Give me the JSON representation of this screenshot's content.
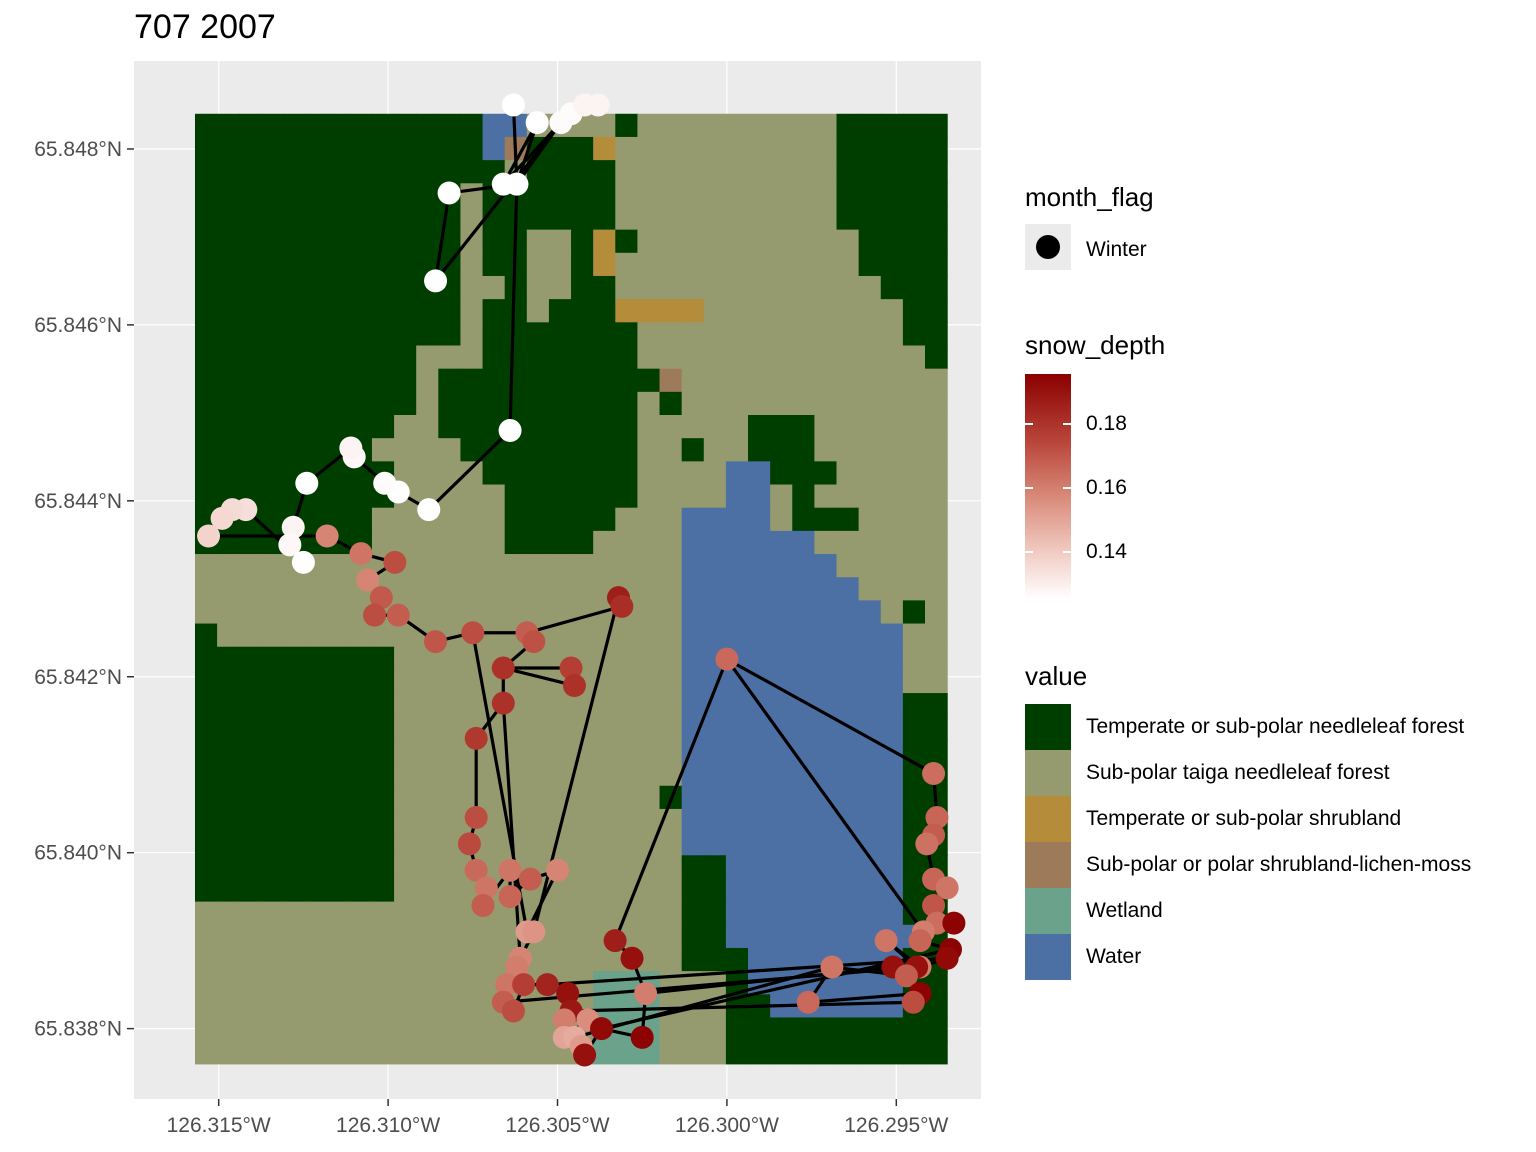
{
  "title": "707 2007",
  "colors": {
    "panel_bg": "#ebebeb",
    "gridline": "#ffffff",
    "path_line": "#000000",
    "snow_low": "#ffffff",
    "snow_high": "#8b0000"
  },
  "axes": {
    "x_ticks": [
      {
        "lon": -126.315,
        "label": "126.315°W"
      },
      {
        "lon": -126.31,
        "label": "126.310°W"
      },
      {
        "lon": -126.305,
        "label": "126.305°W"
      },
      {
        "lon": -126.3,
        "label": "126.300°W"
      },
      {
        "lon": -126.295,
        "label": "126.295°W"
      }
    ],
    "y_ticks": [
      {
        "lat": 65.848,
        "label": "65.848°N"
      },
      {
        "lat": 65.846,
        "label": "65.846°N"
      },
      {
        "lat": 65.844,
        "label": "65.844°N"
      },
      {
        "lat": 65.842,
        "label": "65.842°N"
      },
      {
        "lat": 65.84,
        "label": "65.840°N"
      },
      {
        "lat": 65.838,
        "label": "65.838°N"
      }
    ]
  },
  "legend_month": {
    "title": "month_flag",
    "items": [
      {
        "label": "Winter"
      }
    ]
  },
  "legend_snow": {
    "title": "snow_depth",
    "range": [
      0.125,
      0.195
    ],
    "ticks": [
      {
        "value": 0.18,
        "label": "0.18"
      },
      {
        "value": 0.16,
        "label": "0.16"
      },
      {
        "value": 0.14,
        "label": "0.14"
      }
    ]
  },
  "legend_value": {
    "title": "value",
    "items": [
      {
        "code": "T",
        "label": "Temperate or sub-polar needleleaf forest",
        "color": "#003e00"
      },
      {
        "code": "S",
        "label": "Sub-polar taiga needleleaf forest",
        "color": "#969b6f"
      },
      {
        "code": "B",
        "label": "Temperate or sub-polar shrubland",
        "color": "#b58c39"
      },
      {
        "code": "L",
        "label": "Sub-polar or polar shrubland-lichen-moss",
        "color": "#9c7a5a"
      },
      {
        "code": "E",
        "label": "Wetland",
        "color": "#6ba28c"
      },
      {
        "code": "W",
        "label": "Water",
        "color": "#4c70a3"
      }
    ]
  },
  "land_cover_grid": [
    "TTTTTTTTTTTTTWWSSSSTSSSSSSSSSTTTTT",
    "TTTTTTTTTTTTTWLTTTBSSSSSSSSSSTTTTT",
    "TTTTTTTTTTTTTTSTTTTSSSSSSSSSSTTTTT",
    "TTTTTTTTTTTTSTTTTTTSSSSSSSSSSTTTTT",
    "TTTTTTTTTTTTSTTTTTTSSSSSSSSSSTTTTT",
    "TTTTTTTTTTTTSTTSSTBTSSSSSSSSSSTTTT",
    "TTTTTTTTTTTTSTTSSTBSSSSSSSSSSSTTTT",
    "TTTTTTTTTTTTSSTSSTTSSSSSSSSSSSSTTT",
    "TTTTTTTTTTTTSTTSTTTBBBBSSSSSSSSSTT",
    "TTTTTTTTTTTTSTTTTTTTSSSSSSSSSSSSTT",
    "TTTTTTTTTTSSSTTTTTTTSSSSSSSSSSSSST",
    "TTTTTTTTTTSTTTTTTTTTTLSSSSSSSSSSSS",
    "TTTTTTTTTTSTTTTTTTTTSTSSSSSSSSSSSS",
    "TTTTTTTTTSSTTTTTTTTTSSSSSTTTSSSSSS",
    "TTTTTTTTSSSSTTTTTTTTSSTSSTTTSSSSSS",
    "TTTTTTTTTSSSSTTTTTTTSSSSWWTTTSSSSS",
    "TTTTTTTTTSSSSSTTTTTTSSSSWWSTSSSSSS",
    "TTTTTTTTSSSSSSTTTTTSSSWWWWSTTTSSSS",
    "TTTTTTTTSSSSSSTTTTSSSSWWWWWWSSSSSS",
    "SSSSSSSSSSSSSSSSSSSSSSWWWWWWWSSSSS",
    "SSSSSSSSSSSSSSSSSSSSSSWWWWWWWWSSSS",
    "SSSSSSSSSSSSSSSSSSSSSSWWWWWWWWWSTS",
    "TSSSSSSSSSSSSSSSSSSSSSWWWWWWWWWWSS",
    "TTTTTTTTTSSSSSSSSSSSSSWWWWWWWWWWSS",
    "TTTTTTTTTSSSSSSSSSSSSSWWWWWWWWWWSS",
    "TTTTTTTTTSSSSSSSSSSSSSWWWWWWWWWWTT",
    "TTTTTTTTTSSSSSSSSSSSSSWWWWWWWWWWTT",
    "TTTTTTTTTSSSSSSSSSSSSSWWWWWWWWWWTT",
    "TTTTTTTTTSSSSSSSSSSSSSWWWWWWWWWWTT",
    "TTTTTTTTTSSSSSSSSSSSSTWWWWWWWWWWTT",
    "TTTTTTTTTSSSSSSSSSSSSSWWWWWWWWWWTT",
    "TTTTTTTTTSSSSSSSSSSSSSWWWWWWWWWWTT",
    "TTTTTTTTTSSSSSSSSSSSSSTTWWWWWWWWTT",
    "TTTTTTTTTSSSSSSSSSSSSSTTWWWWWWWWTT",
    "SSSSSSSSSSSSSSSSSSSSSSTTWWWWWWWWTT",
    "SSSSSSSSSSSSSSSSSSSSSSTTWWWWWWWWWT",
    "SSSSSSSSSSSSSSSSSSSSSSTTTWWWWWWWTT",
    "SSSSSSSSSSSSSSSSSSEEESSSTWWWWWWWTT",
    "SSSSSSSSSSSSSSSSSSEEESSSTTWWWWWWTT",
    "SSSSSSSSSSSSSSSSSSEEESSSTTTTTTTTTT",
    "SSSSSSSSSSSSSSSSSSEEESSSTTTTTTTTTT"
  ],
  "chart_data": {
    "type": "map",
    "title": "707 2007",
    "xlim": [
      -126.3175,
      -126.2925
    ],
    "ylim": [
      65.8372,
      65.849
    ],
    "grid_extent": {
      "lon": [
        -126.3157,
        -126.2935
      ],
      "lat": [
        65.8376,
        65.8484
      ]
    },
    "track": [
      {
        "lon": -126.3063,
        "lat": 65.8485,
        "snow_depth": 0.125
      },
      {
        "lon": -126.3062,
        "lat": 65.8476,
        "snow_depth": 0.125
      },
      {
        "lon": -126.3082,
        "lat": 65.8475,
        "snow_depth": 0.125
      },
      {
        "lon": -126.3086,
        "lat": 65.8465,
        "snow_depth": 0.125
      },
      {
        "lon": -126.3049,
        "lat": 65.8483,
        "snow_depth": 0.126
      },
      {
        "lon": -126.3062,
        "lat": 65.8476,
        "snow_depth": 0.125
      },
      {
        "lon": -126.3056,
        "lat": 65.8483,
        "snow_depth": 0.125
      },
      {
        "lon": -126.3066,
        "lat": 65.8476,
        "snow_depth": 0.125
      },
      {
        "lon": -126.3046,
        "lat": 65.8484,
        "snow_depth": 0.126
      },
      {
        "lon": -126.3042,
        "lat": 65.8485,
        "snow_depth": 0.128
      },
      {
        "lon": -126.3038,
        "lat": 65.8485,
        "snow_depth": 0.128
      },
      {
        "lon": -126.3064,
        "lat": 65.8448,
        "snow_depth": 0.125
      },
      {
        "lon": -126.3088,
        "lat": 65.8439,
        "snow_depth": 0.125
      },
      {
        "lon": -126.3097,
        "lat": 65.8441,
        "snow_depth": 0.125
      },
      {
        "lon": -126.3101,
        "lat": 65.8442,
        "snow_depth": 0.126
      },
      {
        "lon": -126.311,
        "lat": 65.8445,
        "snow_depth": 0.127
      },
      {
        "lon": -126.3111,
        "lat": 65.8446,
        "snow_depth": 0.128
      },
      {
        "lon": -126.3124,
        "lat": 65.8442,
        "snow_depth": 0.125
      },
      {
        "lon": -126.3128,
        "lat": 65.8437,
        "snow_depth": 0.128
      },
      {
        "lon": -126.3129,
        "lat": 65.8435,
        "snow_depth": 0.127
      },
      {
        "lon": -126.3125,
        "lat": 65.8433,
        "snow_depth": 0.125
      },
      {
        "lon": -126.3142,
        "lat": 65.8439,
        "snow_depth": 0.134
      },
      {
        "lon": -126.3146,
        "lat": 65.8439,
        "snow_depth": 0.135
      },
      {
        "lon": -126.3149,
        "lat": 65.8438,
        "snow_depth": 0.136
      },
      {
        "lon": -126.3153,
        "lat": 65.8436,
        "snow_depth": 0.137
      },
      {
        "lon": -126.3118,
        "lat": 65.8436,
        "snow_depth": 0.158
      },
      {
        "lon": -126.3108,
        "lat": 65.8434,
        "snow_depth": 0.162
      },
      {
        "lon": -126.3098,
        "lat": 65.8433,
        "snow_depth": 0.172
      },
      {
        "lon": -126.3106,
        "lat": 65.8431,
        "snow_depth": 0.158
      },
      {
        "lon": -126.3102,
        "lat": 65.8429,
        "snow_depth": 0.169
      },
      {
        "lon": -126.3104,
        "lat": 65.8427,
        "snow_depth": 0.172
      },
      {
        "lon": -126.3097,
        "lat": 65.8427,
        "snow_depth": 0.168
      },
      {
        "lon": -126.3086,
        "lat": 65.8424,
        "snow_depth": 0.17
      },
      {
        "lon": -126.3075,
        "lat": 65.8425,
        "snow_depth": 0.172
      },
      {
        "lon": -126.3059,
        "lat": 65.8425,
        "snow_depth": 0.168
      },
      {
        "lon": -126.3057,
        "lat": 65.8424,
        "snow_depth": 0.171
      },
      {
        "lon": -126.3066,
        "lat": 65.8421,
        "snow_depth": 0.18
      },
      {
        "lon": -126.3046,
        "lat": 65.8421,
        "snow_depth": 0.176
      },
      {
        "lon": -126.3045,
        "lat": 65.8419,
        "snow_depth": 0.18
      },
      {
        "lon": -126.3066,
        "lat": 65.8417,
        "snow_depth": 0.18
      },
      {
        "lon": -126.3074,
        "lat": 65.8413,
        "snow_depth": 0.178
      },
      {
        "lon": -126.3032,
        "lat": 65.8429,
        "snow_depth": 0.186
      },
      {
        "lon": -126.3031,
        "lat": 65.8428,
        "snow_depth": 0.181
      },
      {
        "lon": -126.3074,
        "lat": 65.8404,
        "snow_depth": 0.172
      },
      {
        "lon": -126.3076,
        "lat": 65.8401,
        "snow_depth": 0.173
      },
      {
        "lon": -126.3074,
        "lat": 65.8398,
        "snow_depth": 0.165
      },
      {
        "lon": -126.3071,
        "lat": 65.8396,
        "snow_depth": 0.162
      },
      {
        "lon": -126.3072,
        "lat": 65.8394,
        "snow_depth": 0.168
      },
      {
        "lon": -126.3064,
        "lat": 65.8398,
        "snow_depth": 0.162
      },
      {
        "lon": -126.3064,
        "lat": 65.8395,
        "snow_depth": 0.166
      },
      {
        "lon": -126.3058,
        "lat": 65.8397,
        "snow_depth": 0.168
      },
      {
        "lon": -126.305,
        "lat": 65.8398,
        "snow_depth": 0.158
      },
      {
        "lon": -126.3059,
        "lat": 65.8391,
        "snow_depth": 0.152
      },
      {
        "lon": -126.3057,
        "lat": 65.8391,
        "snow_depth": 0.154
      },
      {
        "lon": -126.3061,
        "lat": 65.8388,
        "snow_depth": 0.158
      },
      {
        "lon": -126.3062,
        "lat": 65.8387,
        "snow_depth": 0.16
      },
      {
        "lon": -126.3065,
        "lat": 65.8385,
        "snow_depth": 0.162
      },
      {
        "lon": -126.3066,
        "lat": 65.8383,
        "snow_depth": 0.168
      },
      {
        "lon": -126.3063,
        "lat": 65.8382,
        "snow_depth": 0.172
      },
      {
        "lon": -126.306,
        "lat": 65.8385,
        "snow_depth": 0.176
      },
      {
        "lon": -126.3053,
        "lat": 65.8385,
        "snow_depth": 0.184
      },
      {
        "lon": -126.3047,
        "lat": 65.8384,
        "snow_depth": 0.19
      },
      {
        "lon": -126.3046,
        "lat": 65.8382,
        "snow_depth": 0.188
      },
      {
        "lon": -126.3048,
        "lat": 65.8381,
        "snow_depth": 0.16
      },
      {
        "lon": -126.3041,
        "lat": 65.8381,
        "snow_depth": 0.156
      },
      {
        "lon": -126.3048,
        "lat": 65.8379,
        "snow_depth": 0.15
      },
      {
        "lon": -126.3045,
        "lat": 65.8379,
        "snow_depth": 0.148
      },
      {
        "lon": -126.3043,
        "lat": 65.8378,
        "snow_depth": 0.152
      },
      {
        "lon": -126.3042,
        "lat": 65.8377,
        "snow_depth": 0.19
      },
      {
        "lon": -126.3037,
        "lat": 65.838,
        "snow_depth": 0.192
      },
      {
        "lon": -126.3025,
        "lat": 65.8379,
        "snow_depth": 0.194
      },
      {
        "lon": -126.3024,
        "lat": 65.8384,
        "snow_depth": 0.16
      },
      {
        "lon": -126.3028,
        "lat": 65.8388,
        "snow_depth": 0.19
      },
      {
        "lon": -126.3033,
        "lat": 65.839,
        "snow_depth": 0.186
      },
      {
        "lon": -126.3,
        "lat": 65.8422,
        "snow_depth": 0.165
      },
      {
        "lon": -126.2939,
        "lat": 65.8409,
        "snow_depth": 0.164
      },
      {
        "lon": -126.2938,
        "lat": 65.8404,
        "snow_depth": 0.166
      },
      {
        "lon": -126.2939,
        "lat": 65.8402,
        "snow_depth": 0.168
      },
      {
        "lon": -126.2941,
        "lat": 65.8401,
        "snow_depth": 0.163
      },
      {
        "lon": -126.2939,
        "lat": 65.8397,
        "snow_depth": 0.166
      },
      {
        "lon": -126.2935,
        "lat": 65.8396,
        "snow_depth": 0.162
      },
      {
        "lon": -126.2939,
        "lat": 65.8394,
        "snow_depth": 0.17
      },
      {
        "lon": -126.2938,
        "lat": 65.8392,
        "snow_depth": 0.164
      },
      {
        "lon": -126.2933,
        "lat": 65.8392,
        "snow_depth": 0.194
      },
      {
        "lon": -126.2942,
        "lat": 65.8391,
        "snow_depth": 0.16
      },
      {
        "lon": -126.2943,
        "lat": 65.839,
        "snow_depth": 0.166
      },
      {
        "lon": -126.2934,
        "lat": 65.8389,
        "snow_depth": 0.194
      },
      {
        "lon": -126.2935,
        "lat": 65.8388,
        "snow_depth": 0.192
      },
      {
        "lon": -126.2943,
        "lat": 65.8387,
        "snow_depth": 0.16
      },
      {
        "lon": -126.2953,
        "lat": 65.839,
        "snow_depth": 0.162
      },
      {
        "lon": -126.2944,
        "lat": 65.8387,
        "snow_depth": 0.19
      },
      {
        "lon": -126.2951,
        "lat": 65.8387,
        "snow_depth": 0.19
      },
      {
        "lon": -126.2947,
        "lat": 65.8386,
        "snow_depth": 0.168
      },
      {
        "lon": -126.2969,
        "lat": 65.8387,
        "snow_depth": 0.162
      },
      {
        "lon": -126.2976,
        "lat": 65.8383,
        "snow_depth": 0.165
      },
      {
        "lon": -126.2943,
        "lat": 65.8384,
        "snow_depth": 0.194
      },
      {
        "lon": -126.2945,
        "lat": 65.8383,
        "snow_depth": 0.172
      }
    ],
    "links": [
      [
        0,
        1
      ],
      [
        1,
        2
      ],
      [
        2,
        3
      ],
      [
        3,
        4
      ],
      [
        4,
        5
      ],
      [
        5,
        6
      ],
      [
        6,
        7
      ],
      [
        7,
        4
      ],
      [
        4,
        8
      ],
      [
        8,
        9
      ],
      [
        9,
        10
      ],
      [
        5,
        11
      ],
      [
        11,
        12
      ],
      [
        12,
        13
      ],
      [
        13,
        14
      ],
      [
        14,
        15
      ],
      [
        15,
        16
      ],
      [
        16,
        17
      ],
      [
        17,
        18
      ],
      [
        18,
        19
      ],
      [
        19,
        20
      ],
      [
        20,
        21
      ],
      [
        21,
        22
      ],
      [
        22,
        23
      ],
      [
        23,
        24
      ],
      [
        24,
        25
      ],
      [
        25,
        26
      ],
      [
        26,
        27
      ],
      [
        27,
        28
      ],
      [
        28,
        29
      ],
      [
        29,
        30
      ],
      [
        30,
        31
      ],
      [
        31,
        32
      ],
      [
        32,
        33
      ],
      [
        33,
        34
      ],
      [
        34,
        35
      ],
      [
        35,
        36
      ],
      [
        36,
        37
      ],
      [
        37,
        38
      ],
      [
        38,
        36
      ],
      [
        36,
        39
      ],
      [
        39,
        40
      ],
      [
        40,
        43
      ],
      [
        43,
        44
      ],
      [
        44,
        45
      ],
      [
        45,
        46
      ],
      [
        46,
        47
      ],
      [
        47,
        48
      ],
      [
        48,
        49
      ],
      [
        49,
        50
      ],
      [
        50,
        51
      ],
      [
        51,
        52
      ],
      [
        52,
        53
      ],
      [
        53,
        54
      ],
      [
        54,
        55
      ],
      [
        55,
        56
      ],
      [
        56,
        57
      ],
      [
        57,
        58
      ],
      [
        58,
        59
      ],
      [
        59,
        60
      ],
      [
        60,
        61
      ],
      [
        61,
        62
      ],
      [
        62,
        63
      ],
      [
        63,
        64
      ],
      [
        64,
        65
      ],
      [
        65,
        66
      ],
      [
        66,
        67
      ],
      [
        67,
        68
      ],
      [
        68,
        69
      ],
      [
        69,
        70
      ],
      [
        70,
        71
      ],
      [
        71,
        72
      ],
      [
        72,
        73
      ],
      [
        73,
        74
      ],
      [
        74,
        75
      ],
      [
        75,
        76
      ],
      [
        76,
        77
      ],
      [
        77,
        78
      ],
      [
        78,
        79
      ],
      [
        79,
        80
      ],
      [
        80,
        81
      ],
      [
        81,
        82
      ],
      [
        82,
        83
      ],
      [
        83,
        84
      ],
      [
        84,
        85
      ],
      [
        85,
        86
      ],
      [
        86,
        87
      ],
      [
        87,
        88
      ],
      [
        88,
        89
      ],
      [
        89,
        90
      ],
      [
        90,
        91
      ],
      [
        91,
        92
      ],
      [
        92,
        93
      ],
      [
        93,
        94
      ],
      [
        94,
        95
      ],
      [
        95,
        96
      ],
      [
        34,
        42
      ],
      [
        42,
        41
      ],
      [
        41,
        53
      ],
      [
        50,
        51
      ],
      [
        39,
        54
      ],
      [
        33,
        52
      ],
      [
        57,
        90
      ],
      [
        60,
        87
      ],
      [
        69,
        86
      ],
      [
        71,
        91
      ],
      [
        74,
        84
      ],
      [
        66,
        93
      ],
      [
        62,
        96
      ]
    ]
  }
}
